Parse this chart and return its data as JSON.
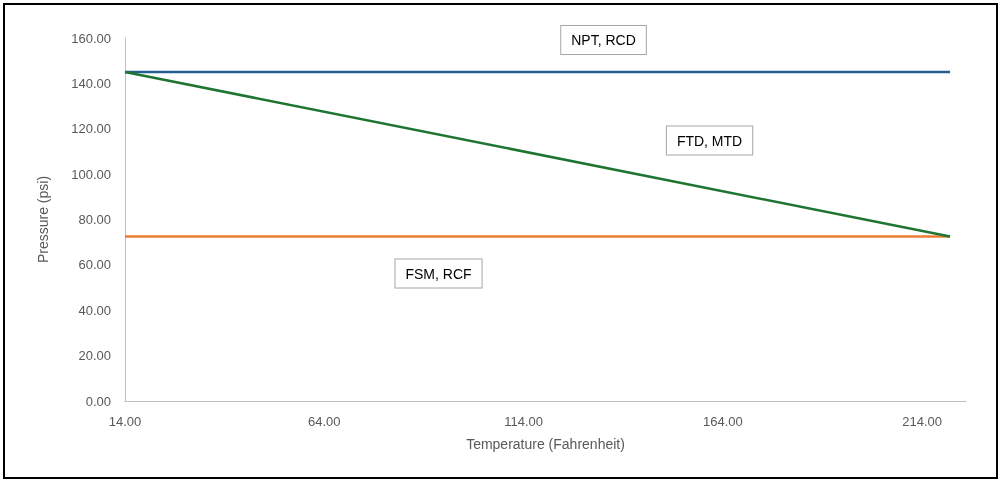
{
  "chart_data": {
    "type": "line",
    "xlabel": "Temperature (Fahrenheit)",
    "ylabel": "Pressure (psi)",
    "xlim": [
      14,
      225
    ],
    "xticks": [
      {
        "value": 14,
        "label": "14.00"
      },
      {
        "value": 64,
        "label": "64.00"
      },
      {
        "value": 114,
        "label": "114.00"
      },
      {
        "value": 164,
        "label": "164.00"
      },
      {
        "value": 214,
        "label": "214.00"
      }
    ],
    "ylim": [
      0,
      160
    ],
    "yticks": [
      {
        "value": 0,
        "label": "0.00"
      },
      {
        "value": 20,
        "label": "20.00"
      },
      {
        "value": 40,
        "label": "40.00"
      },
      {
        "value": 60,
        "label": "60.00"
      },
      {
        "value": 80,
        "label": "80.00"
      },
      {
        "value": 100,
        "label": "100.00"
      },
      {
        "value": 120,
        "label": "120.00"
      },
      {
        "value": 140,
        "label": "140.00"
      },
      {
        "value": 160,
        "label": "160.00"
      }
    ],
    "grid": false,
    "marker": "none",
    "line_style": "solid",
    "x": [
      14,
      221
    ],
    "series": [
      {
        "name": "NPT, RCD",
        "color": "#255e91",
        "values": [
          145,
          145
        ]
      },
      {
        "name": "FSM, RCF",
        "color": "#ed7d31",
        "values": [
          72.5,
          72.5
        ]
      },
      {
        "name": "FTD, MTD",
        "color": "#1e7431",
        "values": [
          145,
          72.5
        ]
      }
    ]
  }
}
